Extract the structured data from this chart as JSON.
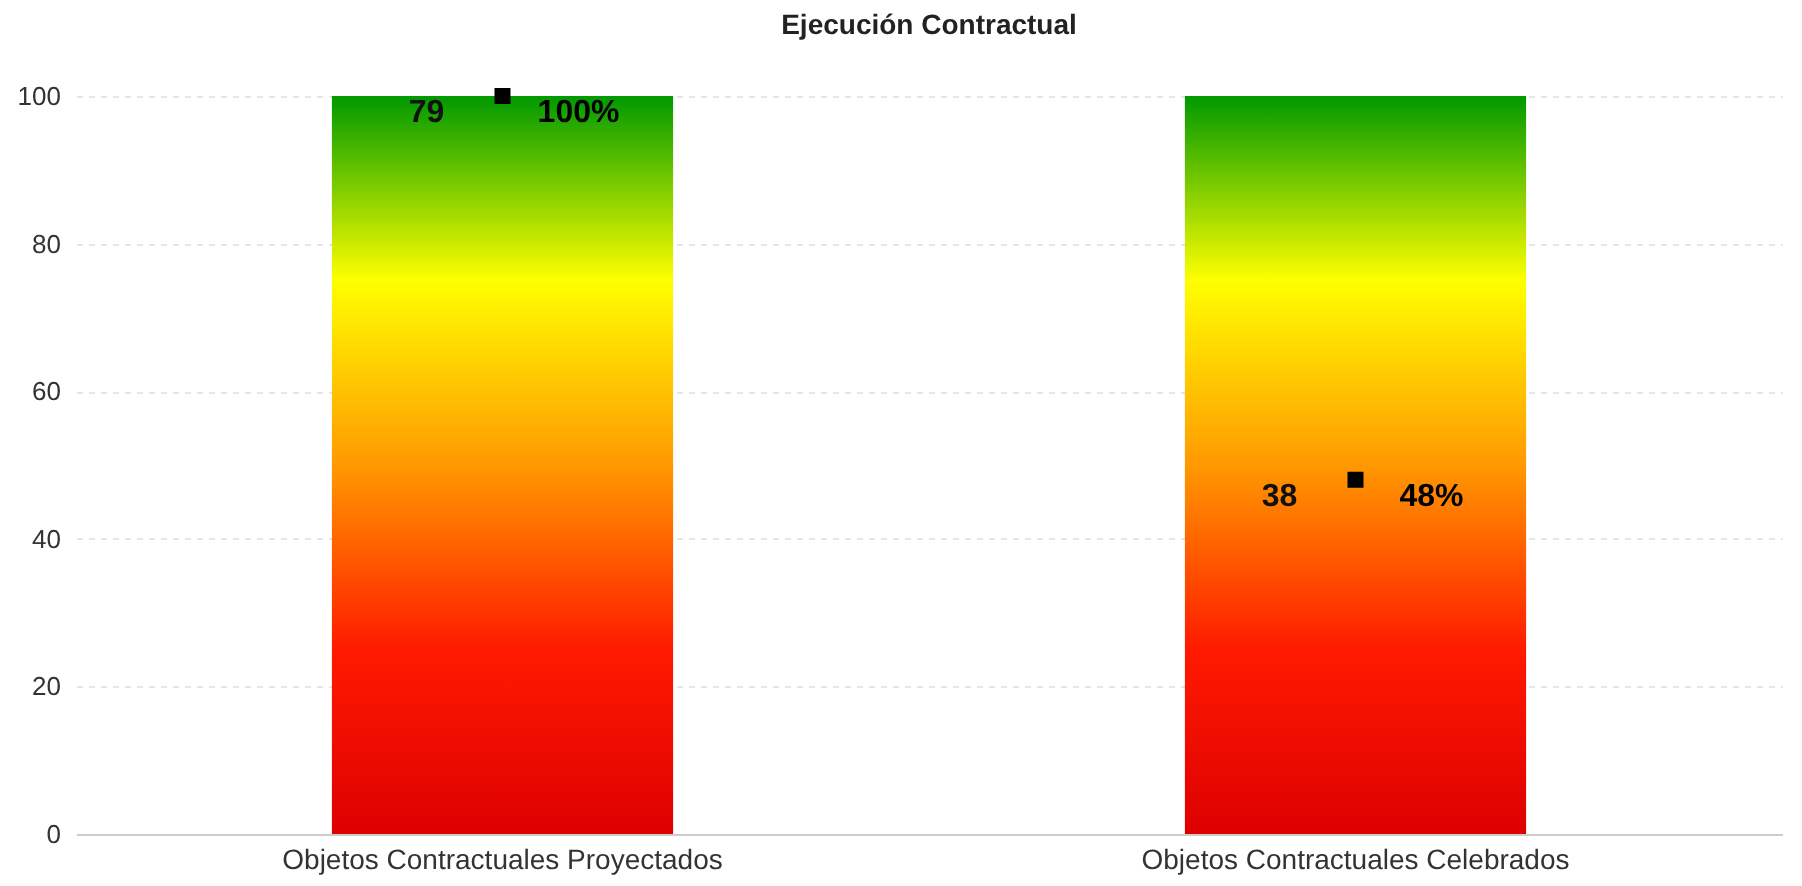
{
  "chart_data": {
    "type": "bar",
    "title": "Ejecución Contractual",
    "categories": [
      "Objetos Contractuales Proyectados",
      "Objetos Contractuales Celebrados"
    ],
    "series": [
      {
        "color": "#ffff00",
        "values": [
          100,
          100
        ]
      },
      {
        "type": "scatter",
        "color": "#000000",
        "marker": "square",
        "values": [
          100,
          48
        ],
        "value_labels": [
          "100%",
          "48%"
        ]
      }
    ],
    "annotations": [
      {
        "text": "79",
        "x": "Objetos Contractuales Proyectados",
        "y": 100
      },
      {
        "text": "38",
        "x": "Objetos Contractuales Celebrados",
        "y": 48
      }
    ],
    "ylim": [
      0,
      100
    ],
    "yticks": [
      0,
      20,
      40,
      60,
      80,
      100
    ],
    "grid": "y"
  }
}
